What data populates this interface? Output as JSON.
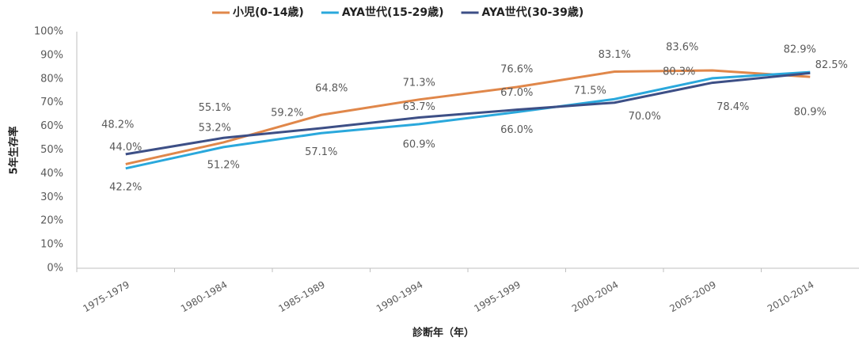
{
  "chart_data": {
    "type": "line",
    "categories": [
      "1975-1979",
      "1980-1984",
      "1985-1989",
      "1990-1994",
      "1995-1999",
      "2000-2004",
      "2005-2009",
      "2010-2014"
    ],
    "series": [
      {
        "name": "小児(0-14歳)",
        "color": "#e0874a",
        "values": [
          44.0,
          53.2,
          64.8,
          71.3,
          76.6,
          83.1,
          83.6,
          80.9
        ],
        "value_labels": [
          "44.0%",
          "53.2%",
          "64.8%",
          "71.3%",
          "76.6%",
          "83.1%",
          "83.6%",
          "80.9%"
        ]
      },
      {
        "name": "AYA世代(15-29歳)",
        "color": "#2aa8dc",
        "values": [
          42.2,
          51.2,
          57.1,
          60.9,
          66.0,
          71.5,
          80.3,
          82.9
        ],
        "value_labels": [
          "42.2%",
          "51.2%",
          "57.1%",
          "60.9%",
          "66.0%",
          "71.5%",
          "80.3%",
          "82.9%"
        ]
      },
      {
        "name": "AYA世代(30-39歳)",
        "color": "#3d4f86",
        "values": [
          48.2,
          55.1,
          59.2,
          63.7,
          67.0,
          70.0,
          78.4,
          82.5
        ],
        "value_labels": [
          "48.2%",
          "55.1%",
          "59.2%",
          "63.7%",
          "67.0%",
          "70.0%",
          "78.4%",
          "82.5%"
        ]
      }
    ],
    "ylim": [
      0,
      100
    ],
    "yticks": [
      {
        "value": 0,
        "label": "0%"
      },
      {
        "value": 10,
        "label": "10%"
      },
      {
        "value": 20,
        "label": "20%"
      },
      {
        "value": 30,
        "label": "30%"
      },
      {
        "value": 40,
        "label": "40%"
      },
      {
        "value": 50,
        "label": "50%"
      },
      {
        "value": 60,
        "label": "60%"
      },
      {
        "value": 70,
        "label": "70%"
      },
      {
        "value": 80,
        "label": "80%"
      },
      {
        "value": 90,
        "label": "90%"
      },
      {
        "value": 100,
        "label": "100%"
      }
    ],
    "y_label": "5年生存率",
    "x_label": "診断年（年）",
    "legend": "top"
  }
}
